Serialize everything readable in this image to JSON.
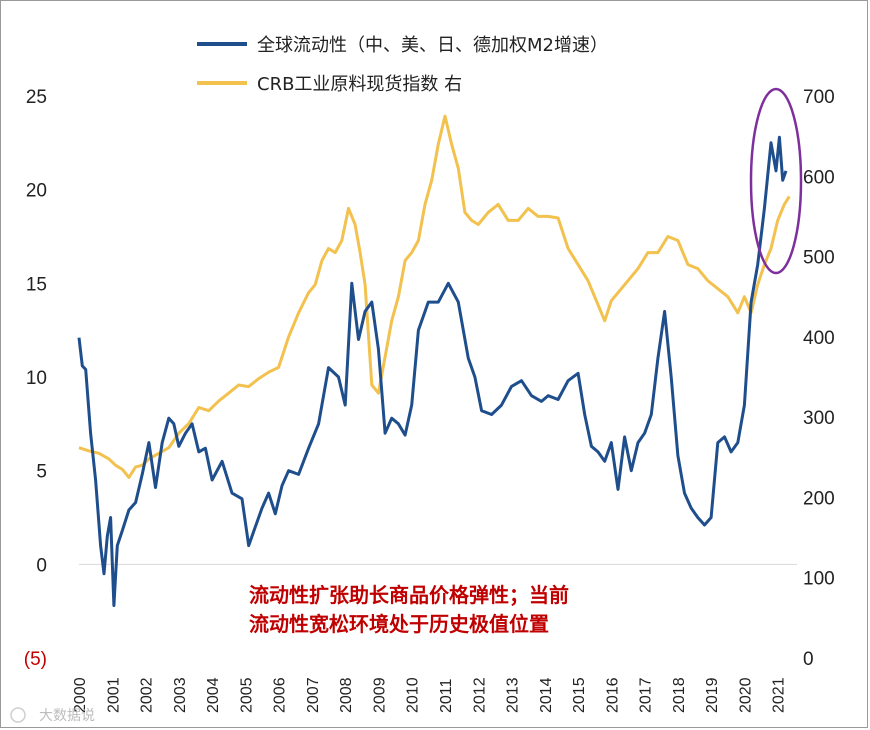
{
  "chart_data": {
    "type": "line",
    "x_ticks": [
      "2000",
      "2001",
      "2002",
      "2003",
      "2004",
      "2005",
      "2006",
      "2007",
      "2008",
      "2009",
      "2010",
      "2011",
      "2012",
      "2013",
      "2014",
      "2015",
      "2016",
      "2017",
      "2018",
      "2019",
      "2020",
      "2021"
    ],
    "x_range": [
      2000.0,
      2021.4
    ],
    "y_left": {
      "range": [
        -5,
        25
      ],
      "ticks": [
        -5,
        0,
        5,
        10,
        15,
        20,
        25
      ],
      "tick_labels": [
        "(5)",
        "0",
        "5",
        "10",
        "15",
        "20",
        "25"
      ]
    },
    "y_right": {
      "range": [
        0,
        700
      ],
      "ticks": [
        0,
        100,
        200,
        300,
        400,
        500,
        600,
        700
      ],
      "tick_labels": [
        "0",
        "100",
        "200",
        "300",
        "400",
        "500",
        "600",
        "700"
      ]
    },
    "series": [
      {
        "name": "全球流动性（中、美、日、德加权M2增速）",
        "axis": "left",
        "color": "#1f4e8c",
        "x": [
          2000.0,
          2000.1,
          2000.2,
          2000.35,
          2000.5,
          2000.65,
          2000.75,
          2000.85,
          2000.95,
          2001.05,
          2001.15,
          2001.3,
          2001.5,
          2001.7,
          2001.9,
          2002.1,
          2002.3,
          2002.5,
          2002.7,
          2002.85,
          2003.0,
          2003.2,
          2003.4,
          2003.6,
          2003.8,
          2004.0,
          2004.3,
          2004.6,
          2004.9,
          2005.1,
          2005.3,
          2005.5,
          2005.7,
          2005.9,
          2006.1,
          2006.3,
          2006.6,
          2006.9,
          2007.2,
          2007.5,
          2007.8,
          2008.0,
          2008.2,
          2008.4,
          2008.6,
          2008.8,
          2009.0,
          2009.2,
          2009.4,
          2009.6,
          2009.8,
          2010.0,
          2010.2,
          2010.5,
          2010.8,
          2011.1,
          2011.4,
          2011.7,
          2011.9,
          2012.1,
          2012.4,
          2012.7,
          2013.0,
          2013.3,
          2013.6,
          2013.9,
          2014.1,
          2014.4,
          2014.7,
          2015.0,
          2015.2,
          2015.4,
          2015.6,
          2015.8,
          2016.0,
          2016.2,
          2016.4,
          2016.6,
          2016.8,
          2017.0,
          2017.2,
          2017.4,
          2017.6,
          2017.8,
          2018.0,
          2018.2,
          2018.4,
          2018.6,
          2018.8,
          2019.0,
          2019.2,
          2019.4,
          2019.6,
          2019.8,
          2020.0,
          2020.2,
          2020.4,
          2020.6,
          2020.8,
          2020.95,
          2021.05,
          2021.15,
          2021.25
        ],
        "values": [
          12.1,
          10.6,
          10.4,
          7.0,
          4.5,
          1.0,
          -0.5,
          1.5,
          2.5,
          -2.2,
          1.0,
          1.8,
          2.9,
          3.3,
          4.8,
          6.5,
          4.1,
          6.5,
          7.8,
          7.5,
          6.3,
          7.0,
          7.5,
          6.0,
          6.2,
          4.5,
          5.5,
          3.8,
          3.5,
          1.0,
          2.0,
          3.0,
          3.8,
          2.7,
          4.2,
          5.0,
          4.8,
          6.2,
          7.5,
          10.5,
          10.0,
          8.5,
          15.0,
          12.0,
          13.5,
          14.0,
          11.5,
          7.0,
          7.8,
          7.5,
          6.9,
          8.5,
          12.5,
          14.0,
          14.0,
          15.0,
          14.0,
          11.0,
          10.0,
          8.2,
          8.0,
          8.5,
          9.5,
          9.8,
          9.0,
          8.7,
          9.0,
          8.8,
          9.8,
          10.2,
          8.0,
          6.3,
          6.0,
          5.5,
          6.5,
          4.0,
          6.8,
          5.0,
          6.5,
          7.0,
          8.0,
          11.0,
          13.5,
          10.0,
          5.8,
          3.8,
          3.0,
          2.5,
          2.1,
          2.5,
          6.5,
          6.8,
          6.0,
          6.5,
          8.5,
          14.0,
          16.0,
          19.0,
          22.5,
          21.0,
          22.8,
          20.5,
          21.0
        ]
      },
      {
        "name": "CRB工业原料现货指数 右",
        "axis": "right",
        "color": "#f2c14e",
        "x": [
          2000.0,
          2000.3,
          2000.6,
          2000.9,
          2001.1,
          2001.3,
          2001.5,
          2001.7,
          2001.9,
          2002.1,
          2002.4,
          2002.7,
          2003.0,
          2003.3,
          2003.6,
          2003.9,
          2004.2,
          2004.5,
          2004.8,
          2005.1,
          2005.4,
          2005.7,
          2006.0,
          2006.3,
          2006.6,
          2006.9,
          2007.1,
          2007.3,
          2007.5,
          2007.7,
          2007.9,
          2008.1,
          2008.3,
          2008.45,
          2008.6,
          2008.8,
          2009.0,
          2009.2,
          2009.4,
          2009.6,
          2009.8,
          2010.0,
          2010.2,
          2010.4,
          2010.6,
          2010.8,
          2011.0,
          2011.2,
          2011.4,
          2011.6,
          2011.8,
          2012.0,
          2012.3,
          2012.6,
          2012.9,
          2013.2,
          2013.5,
          2013.8,
          2014.1,
          2014.4,
          2014.7,
          2015.0,
          2015.3,
          2015.6,
          2015.8,
          2016.0,
          2016.2,
          2016.5,
          2016.8,
          2017.1,
          2017.4,
          2017.7,
          2018.0,
          2018.3,
          2018.6,
          2018.9,
          2019.2,
          2019.5,
          2019.8,
          2020.0,
          2020.2,
          2020.4,
          2020.6,
          2020.8,
          2021.0,
          2021.2,
          2021.35
        ],
        "values": [
          262,
          258,
          255,
          248,
          240,
          235,
          225,
          238,
          240,
          248,
          255,
          262,
          280,
          292,
          312,
          308,
          320,
          330,
          340,
          338,
          348,
          356,
          362,
          400,
          430,
          455,
          465,
          495,
          510,
          505,
          520,
          560,
          540,
          505,
          465,
          340,
          330,
          375,
          420,
          450,
          495,
          505,
          520,
          565,
          595,
          640,
          675,
          640,
          610,
          555,
          545,
          540,
          555,
          565,
          545,
          545,
          560,
          550,
          550,
          548,
          510,
          490,
          470,
          440,
          420,
          445,
          455,
          470,
          485,
          505,
          505,
          525,
          520,
          490,
          485,
          470,
          460,
          450,
          430,
          450,
          430,
          465,
          490,
          510,
          545,
          565,
          575
        ]
      }
    ],
    "legend": [
      "全球流动性（中、美、日、德加权M2增速）",
      "CRB工业原料现货指数 右"
    ],
    "annotation": [
      "流动性扩张助长商品价格弹性；当前",
      "流动性宽松环境处于历史极值位置"
    ],
    "highlight": "ellipse around 2020.9–2021.3 peak"
  },
  "watermark": "大数据说",
  "colors": {
    "blue": "#1f4e8c",
    "yellow": "#f2c14e",
    "highlight": "#7e2f9c",
    "annotation": "#c00000"
  }
}
